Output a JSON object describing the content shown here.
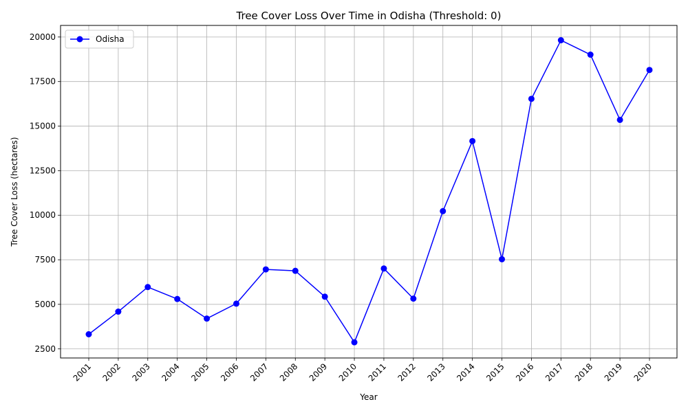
{
  "chart_data": {
    "type": "line",
    "title": "Tree Cover Loss Over Time in Odisha (Threshold: 0)",
    "xlabel": "Year",
    "ylabel": "Tree Cover Loss (hectares)",
    "categories": [
      "2001",
      "2002",
      "2003",
      "2004",
      "2005",
      "2006",
      "2007",
      "2008",
      "2009",
      "2010",
      "2011",
      "2012",
      "2013",
      "2014",
      "2015",
      "2016",
      "2017",
      "2018",
      "2019",
      "2020"
    ],
    "series": [
      {
        "name": "Odisha",
        "color": "#0000ff",
        "marker": "circle",
        "values": [
          3320,
          4590,
          5970,
          5300,
          4200,
          5040,
          6960,
          6880,
          5430,
          2870,
          7010,
          5320,
          10230,
          14160,
          7530,
          16530,
          19820,
          19010,
          15350,
          18150
        ]
      }
    ],
    "ylim": [
      1990,
      20650
    ],
    "yticks": [
      2500,
      5000,
      7500,
      10000,
      12500,
      15000,
      17500,
      20000
    ],
    "grid": true,
    "legend_position": "top-left",
    "x_tick_rotation_deg": 45
  }
}
